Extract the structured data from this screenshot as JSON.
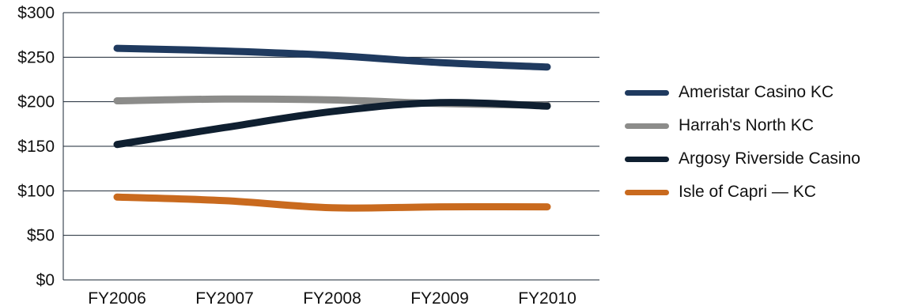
{
  "chart_data": {
    "type": "line",
    "categories": [
      "FY2006",
      "FY2007",
      "FY2008",
      "FY2009",
      "FY2010"
    ],
    "series": [
      {
        "name": "Ameristar Casino KC",
        "color": "#1f3a5f",
        "values": [
          260,
          257,
          252,
          244,
          239
        ]
      },
      {
        "name": "Harrah's North KC",
        "color": "#8c8c8a",
        "values": [
          201,
          203,
          202,
          198,
          196
        ]
      },
      {
        "name": "Argosy Riverside Casino",
        "color": "#0f1f30",
        "values": [
          152,
          171,
          189,
          199,
          195
        ]
      },
      {
        "name": "Isle of Capri — KC",
        "color": "#c96a1e",
        "values": [
          93,
          89,
          81,
          82,
          82
        ]
      }
    ],
    "yticks": [
      "$0",
      "$50",
      "$100",
      "$150",
      "$200",
      "$250",
      "$300"
    ],
    "ylim": [
      0,
      300
    ],
    "grid": true,
    "legend_position": "right"
  }
}
